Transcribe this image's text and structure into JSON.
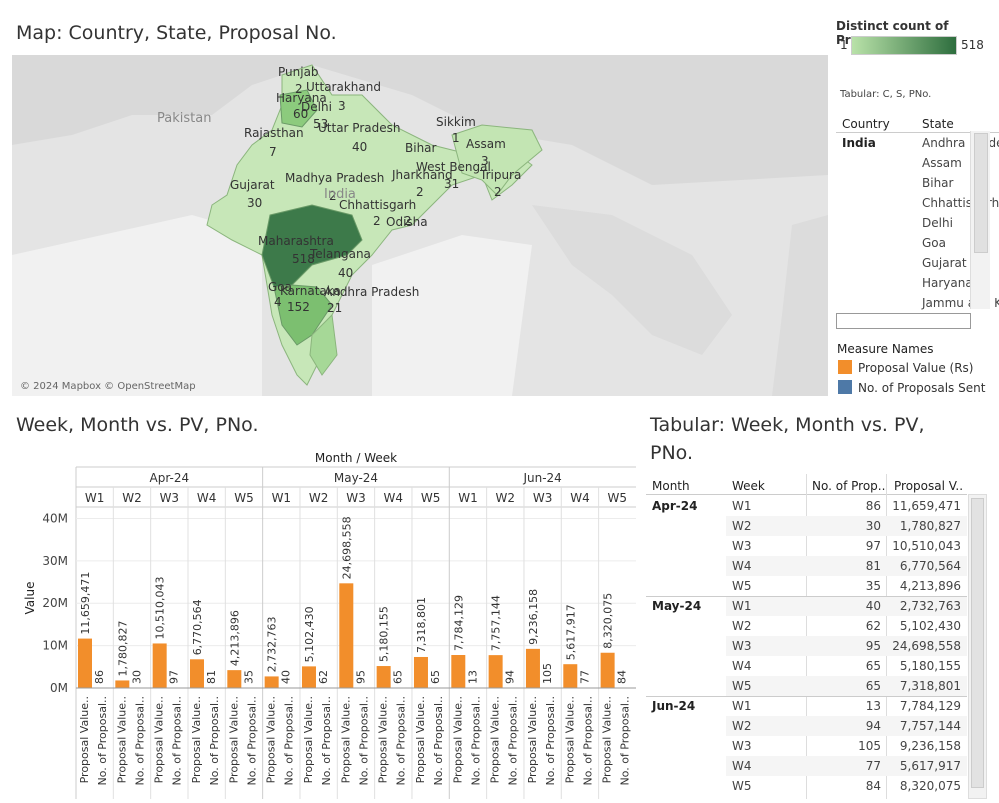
{
  "map": {
    "title": "Map: Country, State, Proposal No.",
    "attribution": "© 2024 Mapbox © OpenStreetMap",
    "countries": [
      "Pakistan",
      "India"
    ],
    "states": [
      {
        "name": "Punjab",
        "value": "2"
      },
      {
        "name": "Haryana",
        "value": "60"
      },
      {
        "name": "Delhi",
        "value": "53"
      },
      {
        "name": "Uttarakhand",
        "value": "3"
      },
      {
        "name": "Uttar Pradesh",
        "value": "40"
      },
      {
        "name": "Rajasthan",
        "value": "7"
      },
      {
        "name": "Sikkim",
        "value": "1"
      },
      {
        "name": "Assam",
        "value": "3"
      },
      {
        "name": "Bihar",
        "value": ""
      },
      {
        "name": "West Bengal",
        "value": "31"
      },
      {
        "name": "Jharkhand",
        "value": "2"
      },
      {
        "name": "Tripura",
        "value": "2"
      },
      {
        "name": "Gujarat",
        "value": "30"
      },
      {
        "name": "Madhya Pradesh",
        "value": "2"
      },
      {
        "name": "Chhattisgarh",
        "value": "2"
      },
      {
        "name": "Odisha",
        "value": "2"
      },
      {
        "name": "Maharashtra",
        "value": "518"
      },
      {
        "name": "Telangana",
        "value": "40"
      },
      {
        "name": "Goa",
        "value": "4"
      },
      {
        "name": "Karnataka",
        "value": "152"
      },
      {
        "name": "Andhra Pradesh",
        "value": "21"
      }
    ]
  },
  "legend": {
    "title": "Distinct count of Proposa..",
    "min": "1",
    "max": "518",
    "color_min": "#b9e2a9",
    "color_max": "#2e6e3e"
  },
  "side_table": {
    "caption": "Tabular: C, S, PNo.",
    "col_country": "Country",
    "col_state": "State",
    "country": "India",
    "states": [
      "Andhra Pradesh",
      "Assam",
      "Bihar",
      "Chhattisgarh",
      "Delhi",
      "Goa",
      "Gujarat",
      "Haryana",
      "Jammu and Kashmir"
    ]
  },
  "measures": {
    "title": "Measure Names",
    "items": [
      {
        "label": "Proposal Value (Rs)",
        "color": "#f28e2b"
      },
      {
        "label": "No. of Proposals Sent",
        "color": "#4e79a7"
      }
    ]
  },
  "chart_section": {
    "title": "Week, Month vs. PV, PNo.",
    "header": "Month / Week",
    "measure_labels": [
      "Proposal Value..",
      "No. of Proposal.."
    ]
  },
  "chart_data": {
    "type": "bar",
    "ylabel": "Value",
    "ylim": [
      0,
      42000000
    ],
    "yticks": [
      "0M",
      "10M",
      "20M",
      "30M",
      "40M"
    ],
    "months": [
      {
        "name": "Apr-24",
        "weeks": [
          {
            "week": "W1",
            "pv": 11659471,
            "pv_label": "11,659,471",
            "pno": 86
          },
          {
            "week": "W2",
            "pv": 1780827,
            "pv_label": "1,780,827",
            "pno": 30
          },
          {
            "week": "W3",
            "pv": 10510043,
            "pv_label": "10,510,043",
            "pno": 97
          },
          {
            "week": "W4",
            "pv": 6770564,
            "pv_label": "6,770,564",
            "pno": 81
          },
          {
            "week": "W5",
            "pv": 4213896,
            "pv_label": "4,213,896",
            "pno": 35
          }
        ]
      },
      {
        "name": "May-24",
        "weeks": [
          {
            "week": "W1",
            "pv": 2732763,
            "pv_label": "2,732,763",
            "pno": 40
          },
          {
            "week": "W2",
            "pv": 5102430,
            "pv_label": "5,102,430",
            "pno": 62
          },
          {
            "week": "W3",
            "pv": 24698558,
            "pv_label": "24,698,558",
            "pno": 95
          },
          {
            "week": "W4",
            "pv": 5180155,
            "pv_label": "5,180,155",
            "pno": 65
          },
          {
            "week": "W5",
            "pv": 7318801,
            "pv_label": "7,318,801",
            "pno": 65
          }
        ]
      },
      {
        "name": "Jun-24",
        "weeks": [
          {
            "week": "W1",
            "pv": 7784129,
            "pv_label": "7,784,129",
            "pno": 13
          },
          {
            "week": "W2",
            "pv": 7757144,
            "pv_label": "7,757,144",
            "pno": 94
          },
          {
            "week": "W3",
            "pv": 9236158,
            "pv_label": "9,236,158",
            "pno": 105
          },
          {
            "week": "W4",
            "pv": 5617917,
            "pv_label": "5,617,917",
            "pno": 77
          },
          {
            "week": "W5",
            "pv": 8320075,
            "pv_label": "8,320,075",
            "pno": 84
          }
        ]
      }
    ]
  },
  "right_table": {
    "title_line1": "Tabular: Week, Month vs. PV,",
    "title_line2": "PNo.",
    "headers": [
      "Month",
      "Week",
      "No. of Prop..",
      "Proposal V.."
    ],
    "rows": [
      {
        "month": "Apr-24",
        "week": "W1",
        "pno": "86",
        "pv": "11,659,471"
      },
      {
        "month": "",
        "week": "W2",
        "pno": "30",
        "pv": "1,780,827"
      },
      {
        "month": "",
        "week": "W3",
        "pno": "97",
        "pv": "10,510,043"
      },
      {
        "month": "",
        "week": "W4",
        "pno": "81",
        "pv": "6,770,564"
      },
      {
        "month": "",
        "week": "W5",
        "pno": "35",
        "pv": "4,213,896"
      },
      {
        "month": "May-24",
        "week": "W1",
        "pno": "40",
        "pv": "2,732,763"
      },
      {
        "month": "",
        "week": "W2",
        "pno": "62",
        "pv": "5,102,430"
      },
      {
        "month": "",
        "week": "W3",
        "pno": "95",
        "pv": "24,698,558"
      },
      {
        "month": "",
        "week": "W4",
        "pno": "65",
        "pv": "5,180,155"
      },
      {
        "month": "",
        "week": "W5",
        "pno": "65",
        "pv": "7,318,801"
      },
      {
        "month": "Jun-24",
        "week": "W1",
        "pno": "13",
        "pv": "7,784,129"
      },
      {
        "month": "",
        "week": "W2",
        "pno": "94",
        "pv": "7,757,144"
      },
      {
        "month": "",
        "week": "W3",
        "pno": "105",
        "pv": "9,236,158"
      },
      {
        "month": "",
        "week": "W4",
        "pno": "77",
        "pv": "5,617,917"
      },
      {
        "month": "",
        "week": "W5",
        "pno": "84",
        "pv": "8,320,075"
      }
    ]
  }
}
